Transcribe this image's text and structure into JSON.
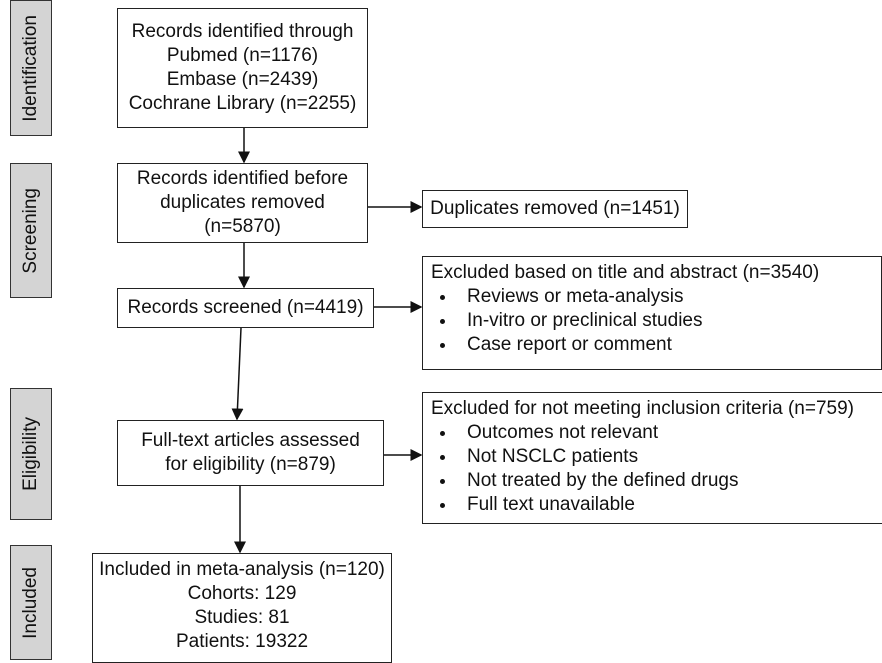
{
  "stages": [
    "Identification",
    "Screening",
    "Eligibility",
    "Included"
  ],
  "identified": {
    "lines": [
      "Records identified through",
      "Pubmed (n=1176)",
      "Embase (n=2439)",
      "Cochrane Library (n=2255)"
    ]
  },
  "before_duplicates": {
    "lines": [
      "Records identified before",
      "duplicates removed",
      "(n=5870)"
    ]
  },
  "duplicates_removed": {
    "lines": [
      "Duplicates removed (n=1451)"
    ]
  },
  "screened": {
    "lines": [
      "Records screened (n=4419)"
    ]
  },
  "excluded_title_abstract": {
    "heading": "Excluded based on title and abstract (n=3540)",
    "items": [
      "Reviews or meta-analysis",
      "In-vitro or preclinical studies",
      "Case report or comment"
    ]
  },
  "full_text": {
    "lines": [
      "Full-text articles assessed",
      "for eligibility (n=879)"
    ]
  },
  "excluded_criteria": {
    "heading": "Excluded for not meeting inclusion criteria (n=759)",
    "items": [
      "Outcomes not relevant",
      "Not NSCLC patients",
      "Not treated by the defined drugs",
      "Full text unavailable"
    ]
  },
  "included": {
    "lines": [
      "Included in meta-analysis (n=120)",
      "Cohorts: 129",
      "Studies: 81",
      "Patients: 19322"
    ]
  }
}
